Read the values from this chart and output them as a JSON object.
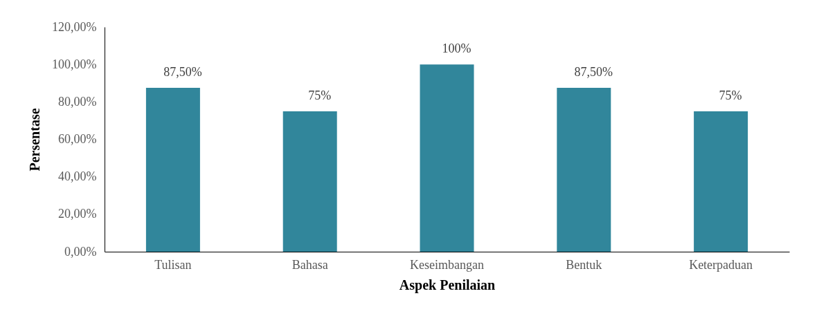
{
  "chart_data": {
    "type": "bar",
    "xlabel": "Aspek Penilaian",
    "ylabel": "Persentase",
    "categories": [
      "Tulisan",
      "Bahasa",
      "Keseimbangan",
      "Bentuk",
      "Keterpaduan"
    ],
    "values": [
      87.5,
      75,
      100,
      87.5,
      75
    ],
    "value_labels": [
      "87,50%",
      "75%",
      "100%",
      "87,50%",
      "75%"
    ],
    "color": "#31869b",
    "ylim": [
      0,
      120
    ],
    "yticks": [
      {
        "value": 0,
        "label": "0,00%"
      },
      {
        "value": 20,
        "label": "20,00%"
      },
      {
        "value": 40,
        "label": "40,00%"
      },
      {
        "value": 60,
        "label": "60,00%"
      },
      {
        "value": 80,
        "label": "80,00%"
      },
      {
        "value": 100,
        "label": "100,00%"
      },
      {
        "value": 120,
        "label": "120,00%"
      }
    ],
    "grid": false
  }
}
